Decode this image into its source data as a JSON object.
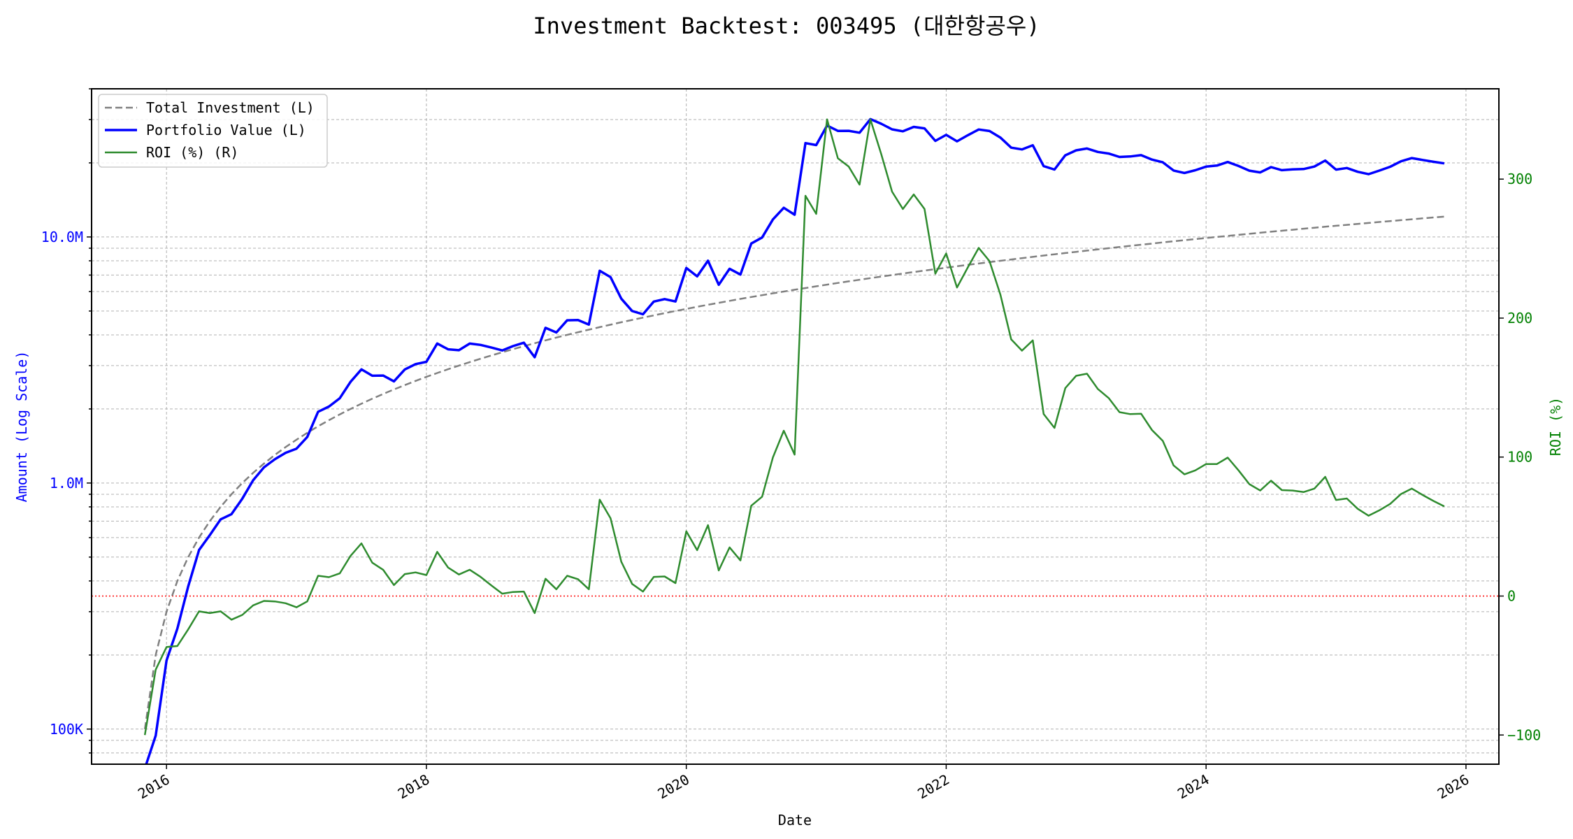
{
  "chart_data": {
    "type": "line",
    "title": "Investment Backtest: 003495 (대한항공우)",
    "xlabel": "Date",
    "ylabel_left": "Amount (Log Scale)",
    "ylabel_right": "ROI (%)",
    "left_axis_scale": "log",
    "ylim_left": [
      72000,
      40000000
    ],
    "ylim_right": [
      -121,
      365
    ],
    "xlim": [
      "2015-05",
      "2026-05"
    ],
    "grid": true,
    "legend_placement": "upper-left",
    "x_ticks": [
      "2016",
      "2018",
      "2020",
      "2022",
      "2024",
      "2026"
    ],
    "y_ticks_left": [
      {
        "value": 100000,
        "label": "100K"
      },
      {
        "value": 1000000,
        "label": "1.0M"
      },
      {
        "value": 10000000,
        "label": "10.0M"
      }
    ],
    "y_ticks_right": [
      {
        "value": -100,
        "label": "−100"
      },
      {
        "value": 0,
        "label": "0"
      },
      {
        "value": 100,
        "label": "100"
      },
      {
        "value": 200,
        "label": "200"
      },
      {
        "value": 300,
        "label": "300"
      }
    ],
    "reference_line": {
      "axis": "right",
      "value": 0,
      "color": "#ff0000",
      "style": "dotted"
    },
    "x": [
      "2015-11",
      "2015-12",
      "2016-01",
      "2016-02",
      "2016-03",
      "2016-04",
      "2016-05",
      "2016-06",
      "2016-07",
      "2016-08",
      "2016-09",
      "2016-10",
      "2016-11",
      "2016-12",
      "2017-01",
      "2017-02",
      "2017-03",
      "2017-04",
      "2017-05",
      "2017-06",
      "2017-07",
      "2017-08",
      "2017-09",
      "2017-10",
      "2017-11",
      "2017-12",
      "2018-01",
      "2018-02",
      "2018-03",
      "2018-04",
      "2018-05",
      "2018-06",
      "2018-07",
      "2018-08",
      "2018-09",
      "2018-10",
      "2018-11",
      "2018-12",
      "2019-01",
      "2019-02",
      "2019-03",
      "2019-04",
      "2019-05",
      "2019-06",
      "2019-07",
      "2019-08",
      "2019-09",
      "2019-10",
      "2019-11",
      "2019-12",
      "2020-01",
      "2020-02",
      "2020-03",
      "2020-04",
      "2020-05",
      "2020-06",
      "2020-07",
      "2020-08",
      "2020-09",
      "2020-10",
      "2020-11",
      "2020-12",
      "2021-01",
      "2021-02",
      "2021-03",
      "2021-04",
      "2021-05",
      "2021-06",
      "2021-07",
      "2021-08",
      "2021-09",
      "2021-10",
      "2021-11",
      "2021-12",
      "2022-01",
      "2022-02",
      "2022-03",
      "2022-04",
      "2022-05",
      "2022-06",
      "2022-07",
      "2022-08",
      "2022-09",
      "2022-10",
      "2022-11",
      "2022-12",
      "2023-01",
      "2023-02",
      "2023-03",
      "2023-04",
      "2023-05",
      "2023-06",
      "2023-07",
      "2023-08",
      "2023-09",
      "2023-10",
      "2023-11",
      "2023-12",
      "2024-01",
      "2024-02",
      "2024-03",
      "2024-04",
      "2024-05",
      "2024-06",
      "2024-07",
      "2024-08",
      "2024-09",
      "2024-10",
      "2024-11",
      "2024-12",
      "2025-01",
      "2025-02",
      "2025-03",
      "2025-04",
      "2025-05",
      "2025-06",
      "2025-07",
      "2025-08",
      "2025-09",
      "2025-10",
      "2025-11"
    ],
    "series": [
      {
        "name": "Total Investment (L)",
        "axis": "left",
        "color": "#808080",
        "style": "dashed",
        "values": [
          100000,
          200000,
          300000,
          400000,
          500000,
          600000,
          700000,
          800000,
          900000,
          1000000,
          1100000,
          1200000,
          1300000,
          1400000,
          1500000,
          1600000,
          1700000,
          1800000,
          1900000,
          2000000,
          2100000,
          2200000,
          2300000,
          2400000,
          2500000,
          2600000,
          2700000,
          2800000,
          2900000,
          3000000,
          3100000,
          3200000,
          3300000,
          3400000,
          3500000,
          3600000,
          3700000,
          3800000,
          3900000,
          4000000,
          4100000,
          4200000,
          4300000,
          4400000,
          4500000,
          4600000,
          4700000,
          4800000,
          4900000,
          5000000,
          5100000,
          5200000,
          5300000,
          5400000,
          5500000,
          5600000,
          5700000,
          5800000,
          5900000,
          6000000,
          6100000,
          6200000,
          6300000,
          6400000,
          6500000,
          6600000,
          6700000,
          6800000,
          6900000,
          7000000,
          7100000,
          7200000,
          7300000,
          7400000,
          7500000,
          7600000,
          7700000,
          7800000,
          7900000,
          8000000,
          8100000,
          8200000,
          8300000,
          8400000,
          8500000,
          8600000,
          8700000,
          8800000,
          8900000,
          9000000,
          9100000,
          9200000,
          9300000,
          9400000,
          9500000,
          9600000,
          9700000,
          9800000,
          9900000,
          10000000,
          10100000,
          10200000,
          10300000,
          10400000,
          10500000,
          10600000,
          10700000,
          10800000,
          10900000,
          11000000,
          11100000,
          11200000,
          11300000,
          11400000,
          11500000,
          11600000,
          11700000,
          11800000,
          11900000,
          12000000,
          12100000
        ]
      },
      {
        "name": "Portfolio Value (L)",
        "axis": "left",
        "color": "#0000ff",
        "style": "solid",
        "values": [
          0,
          94000,
          190000,
          256000,
          380000,
          534000,
          614000,
          712000,
          747000,
          864000,
          1026000,
          1158000,
          1249000,
          1327000,
          1379000,
          1538000,
          1948000,
          2045000,
          2210000,
          2580000,
          2896000,
          2728000,
          2735000,
          2590000,
          2895000,
          3042000,
          3108000,
          3690000,
          3495000,
          3465000,
          3686000,
          3642000,
          3551000,
          3458000,
          3602000,
          3715000,
          3245000,
          4271000,
          4091000,
          4584000,
          4596000,
          4406000,
          7284000,
          6864000,
          5612000,
          5000000,
          4850000,
          5462000,
          5591000,
          5465000,
          7477000,
          6916000,
          8003000,
          6394000,
          7425000,
          7034000,
          9405000,
          9947000,
          11788000,
          13140000,
          12310000,
          24060000,
          23630000,
          28350000,
          26980000,
          26990000,
          26530000,
          30120000,
          28840000,
          27370000,
          26870000,
          28010000,
          27630000,
          24570000,
          25990000,
          24470000,
          25910000,
          27340000,
          26940000,
          25360000,
          23060000,
          22680000,
          23570000,
          19400000,
          18790000,
          21470000,
          22490000,
          22880000,
          22160000,
          21830000,
          21140000,
          21240000,
          21500000,
          20630000,
          20110000,
          18620000,
          18200000,
          18660000,
          19310000,
          19500000,
          20160000,
          19420000,
          18590000,
          18290000,
          19220000,
          18680000,
          18820000,
          18880000,
          19330000,
          20440000,
          18770000,
          19060000,
          18400000,
          17990000,
          18600000,
          19290000,
          20290000,
          20920000,
          20550000,
          20210000,
          19900000
        ]
      },
      {
        "name": "ROI (%) (R)",
        "axis": "right",
        "color": "#2e8b2e",
        "style": "solid",
        "values": [
          -100,
          -53,
          -36.7,
          -36,
          -24,
          -11,
          -12.3,
          -11,
          -17,
          -13.6,
          -6.7,
          -3.5,
          -3.9,
          -5.2,
          -8.1,
          -3.9,
          14.6,
          13.6,
          16.3,
          29,
          37.9,
          24,
          18.9,
          7.9,
          15.8,
          17,
          15.1,
          31.8,
          20.5,
          15.5,
          18.9,
          13.8,
          7.6,
          1.7,
          2.9,
          3.2,
          -12.3,
          12.4,
          4.9,
          14.6,
          12.1,
          4.9,
          69.4,
          56,
          24.7,
          8.7,
          3.2,
          13.8,
          14.1,
          9.3,
          46.6,
          33,
          51,
          18.4,
          35,
          25.6,
          65,
          71.5,
          99.8,
          119,
          101.8,
          288,
          275,
          343,
          315,
          309,
          296,
          343,
          318,
          291,
          278.5,
          289,
          278.5,
          232,
          246.5,
          222,
          236.5,
          250.5,
          241,
          217,
          184.7,
          176.6,
          184,
          131,
          121,
          149.6,
          158.5,
          160,
          149,
          142.5,
          132.3,
          130.9,
          131.2,
          119.5,
          111.7,
          94,
          87.6,
          90.4,
          95,
          95,
          99.6,
          90.4,
          80.5,
          75.9,
          83,
          76.2,
          75.9,
          74.8,
          77.3,
          85.8,
          69.1,
          70.2,
          62.8,
          57.8,
          61.7,
          66.3,
          73.4,
          77.3,
          72.7,
          68.4,
          64.5
        ]
      }
    ],
    "colors": {
      "left_axis": "#0000ff",
      "right_axis": "#008000",
      "grid": "#b0b0b0"
    }
  }
}
